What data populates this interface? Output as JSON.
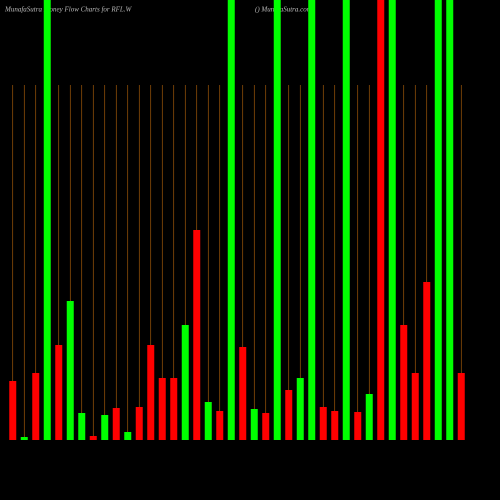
{
  "chart_data": {
    "type": "bar",
    "title": "MunafaSutra  Money Flow  Charts for RFL.W",
    "subtitle": "() MunafaSutra.com",
    "categories": [
      null,
      null,
      null,
      null,
      null,
      null,
      null,
      null,
      null,
      null,
      null,
      null,
      null,
      null,
      null,
      null,
      null,
      null,
      null,
      null,
      null,
      null,
      null,
      null,
      null,
      null,
      null,
      null,
      null,
      null,
      null,
      null,
      null,
      null,
      null,
      null,
      null,
      null,
      null,
      null
    ],
    "values": [
      59,
      3,
      67,
      440,
      95,
      139,
      27,
      4,
      25,
      32,
      8,
      33,
      95,
      62,
      62,
      115,
      210,
      38,
      29,
      440,
      93,
      31,
      27,
      440,
      50,
      62,
      440,
      33,
      29,
      440,
      28,
      46,
      440,
      440,
      115,
      67,
      158,
      440,
      440,
      67
    ],
    "colors": [
      "#ff0000",
      "#00ff00",
      "#ff0000",
      "#00ff00",
      "#ff0000",
      "#00ff00",
      "#00ff00",
      "#ff0000",
      "#00ff00",
      "#ff0000",
      "#00ff00",
      "#ff0000",
      "#ff0000",
      "#ff0000",
      "#ff0000",
      "#00ff00",
      "#ff0000",
      "#00ff00",
      "#ff0000",
      "#00ff00",
      "#ff0000",
      "#00ff00",
      "#ff0000",
      "#00ff00",
      "#ff0000",
      "#00ff00",
      "#00ff00",
      "#ff0000",
      "#ff0000",
      "#00ff00",
      "#ff0000",
      "#00ff00",
      "#ff0000",
      "#00ff00",
      "#ff0000",
      "#ff0000",
      "#ff0000",
      "#00ff00",
      "#00ff00",
      "#ff0000"
    ],
    "ylim": [
      0,
      440
    ]
  }
}
